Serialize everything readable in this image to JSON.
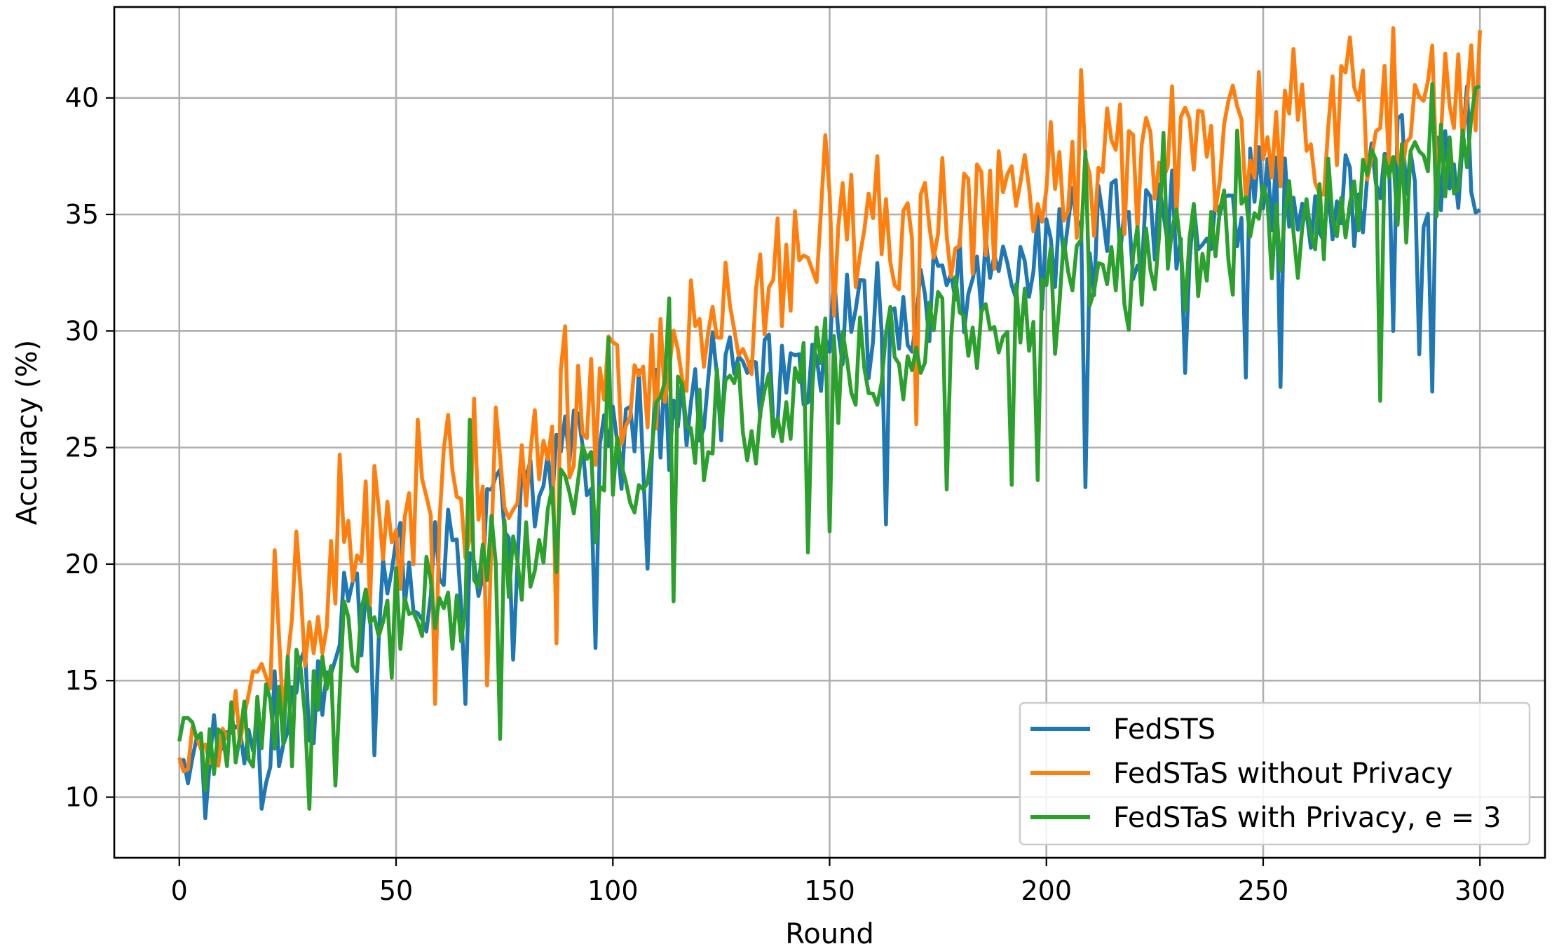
{
  "chart_data": {
    "type": "line",
    "title": "",
    "xlabel": "Round",
    "ylabel": "Accuracy (%)",
    "xlim": [
      -15,
      315
    ],
    "ylim": [
      7.4,
      43.9
    ],
    "xticks": [
      0,
      50,
      100,
      150,
      200,
      250,
      300
    ],
    "yticks": [
      10,
      15,
      20,
      25,
      30,
      35,
      40
    ],
    "grid": true,
    "legend_position": "bottom-right",
    "x_start": 0,
    "x_end": 300,
    "series": [
      {
        "name": "FedSTS",
        "color": "#1f77b4",
        "anchors": [
          [
            0,
            12.3
          ],
          [
            10,
            12.0
          ],
          [
            20,
            12.6
          ],
          [
            30,
            14.1
          ],
          [
            40,
            18.3
          ],
          [
            50,
            19.4
          ],
          [
            60,
            19.7
          ],
          [
            70,
            21.4
          ],
          [
            80,
            22.6
          ],
          [
            90,
            24.0
          ],
          [
            100,
            25.6
          ],
          [
            110,
            26.2
          ],
          [
            120,
            27.2
          ],
          [
            130,
            27.8
          ],
          [
            140,
            28.5
          ],
          [
            150,
            29.8
          ],
          [
            160,
            30.3
          ],
          [
            170,
            31.1
          ],
          [
            180,
            31.7
          ],
          [
            190,
            32.6
          ],
          [
            200,
            33.6
          ],
          [
            210,
            34.1
          ],
          [
            220,
            34.4
          ],
          [
            230,
            35.1
          ],
          [
            240,
            35.0
          ],
          [
            250,
            35.6
          ],
          [
            260,
            35.8
          ],
          [
            270,
            36.1
          ],
          [
            280,
            36.6
          ],
          [
            290,
            37.1
          ],
          [
            300,
            37.6
          ]
        ],
        "noise": 2.6,
        "overrides": [
          [
            1,
            11.6
          ],
          [
            2,
            10.6
          ],
          [
            6,
            9.1
          ],
          [
            17,
            12.0
          ],
          [
            19,
            9.5
          ],
          [
            22,
            15.4
          ],
          [
            45,
            11.8
          ],
          [
            50,
            21.0
          ],
          [
            66,
            14.0
          ],
          [
            77,
            15.9
          ],
          [
            96,
            16.4
          ],
          [
            108,
            19.8
          ],
          [
            163,
            21.7
          ],
          [
            209,
            23.3
          ],
          [
            232,
            28.2
          ],
          [
            246,
            28.0
          ],
          [
            254,
            27.6
          ],
          [
            280,
            30.0
          ],
          [
            286,
            29.0
          ],
          [
            289,
            27.4
          ],
          [
            297,
            40.5
          ],
          [
            300,
            35.2
          ]
        ]
      },
      {
        "name": "FedSTaS without Privacy",
        "color": "#ff7f0e",
        "anchors": [
          [
            0,
            11.7
          ],
          [
            10,
            12.6
          ],
          [
            20,
            14.2
          ],
          [
            30,
            16.6
          ],
          [
            40,
            20.8
          ],
          [
            50,
            21.8
          ],
          [
            60,
            22.6
          ],
          [
            70,
            23.6
          ],
          [
            80,
            24.6
          ],
          [
            90,
            26.4
          ],
          [
            100,
            27.6
          ],
          [
            110,
            28.4
          ],
          [
            120,
            29.4
          ],
          [
            130,
            30.6
          ],
          [
            140,
            32.3
          ],
          [
            150,
            33.6
          ],
          [
            160,
            33.9
          ],
          [
            170,
            34.4
          ],
          [
            180,
            34.8
          ],
          [
            190,
            35.3
          ],
          [
            200,
            36.1
          ],
          [
            210,
            36.6
          ],
          [
            220,
            37.1
          ],
          [
            230,
            37.6
          ],
          [
            240,
            37.6
          ],
          [
            250,
            38.2
          ],
          [
            260,
            38.4
          ],
          [
            270,
            38.6
          ],
          [
            280,
            39.1
          ],
          [
            290,
            39.3
          ],
          [
            300,
            40.1
          ]
        ],
        "noise": 3.0,
        "overrides": [
          [
            0,
            11.7
          ],
          [
            22,
            20.6
          ],
          [
            27,
            21.4
          ],
          [
            37,
            24.7
          ],
          [
            55,
            26.2
          ],
          [
            59,
            14.0
          ],
          [
            62,
            26.4
          ],
          [
            68,
            27.1
          ],
          [
            71,
            14.8
          ],
          [
            87,
            16.6
          ],
          [
            89,
            30.2
          ],
          [
            149,
            38.4
          ],
          [
            161,
            37.5
          ],
          [
            170,
            26.0
          ],
          [
            208,
            41.2
          ],
          [
            229,
            40.5
          ],
          [
            257,
            42.1
          ],
          [
            270,
            42.6
          ],
          [
            280,
            43.0
          ],
          [
            292,
            41.9
          ],
          [
            300,
            42.9
          ]
        ]
      },
      {
        "name": "FedSTaS with Privacy, e = 3",
        "color": "#2ca02c",
        "anchors": [
          [
            0,
            12.6
          ],
          [
            10,
            12.2
          ],
          [
            20,
            12.9
          ],
          [
            30,
            14.2
          ],
          [
            40,
            16.6
          ],
          [
            50,
            17.6
          ],
          [
            60,
            18.6
          ],
          [
            70,
            19.6
          ],
          [
            80,
            21.2
          ],
          [
            90,
            22.6
          ],
          [
            100,
            24.1
          ],
          [
            110,
            25.3
          ],
          [
            120,
            25.9
          ],
          [
            130,
            26.7
          ],
          [
            140,
            27.3
          ],
          [
            150,
            28.1
          ],
          [
            160,
            28.7
          ],
          [
            170,
            29.6
          ],
          [
            180,
            30.3
          ],
          [
            190,
            30.9
          ],
          [
            200,
            31.3
          ],
          [
            210,
            32.1
          ],
          [
            220,
            32.6
          ],
          [
            230,
            33.0
          ],
          [
            240,
            33.5
          ],
          [
            250,
            34.0
          ],
          [
            260,
            34.6
          ],
          [
            270,
            35.2
          ],
          [
            280,
            35.8
          ],
          [
            290,
            36.8
          ],
          [
            300,
            38.2
          ]
        ],
        "noise": 2.6,
        "overrides": [
          [
            0,
            12.4
          ],
          [
            1,
            13.4
          ],
          [
            2,
            13.4
          ],
          [
            6,
            10.3
          ],
          [
            30,
            9.5
          ],
          [
            36,
            10.5
          ],
          [
            67,
            26.2
          ],
          [
            74,
            12.5
          ],
          [
            99,
            29.7
          ],
          [
            113,
            31.4
          ],
          [
            114,
            18.4
          ],
          [
            145,
            20.5
          ],
          [
            150,
            21.4
          ],
          [
            177,
            23.2
          ],
          [
            192,
            23.4
          ],
          [
            198,
            23.6
          ],
          [
            209,
            37.7
          ],
          [
            227,
            38.5
          ],
          [
            244,
            38.6
          ],
          [
            277,
            27.0
          ],
          [
            289,
            40.6
          ],
          [
            300,
            40.5
          ]
        ]
      }
    ]
  }
}
